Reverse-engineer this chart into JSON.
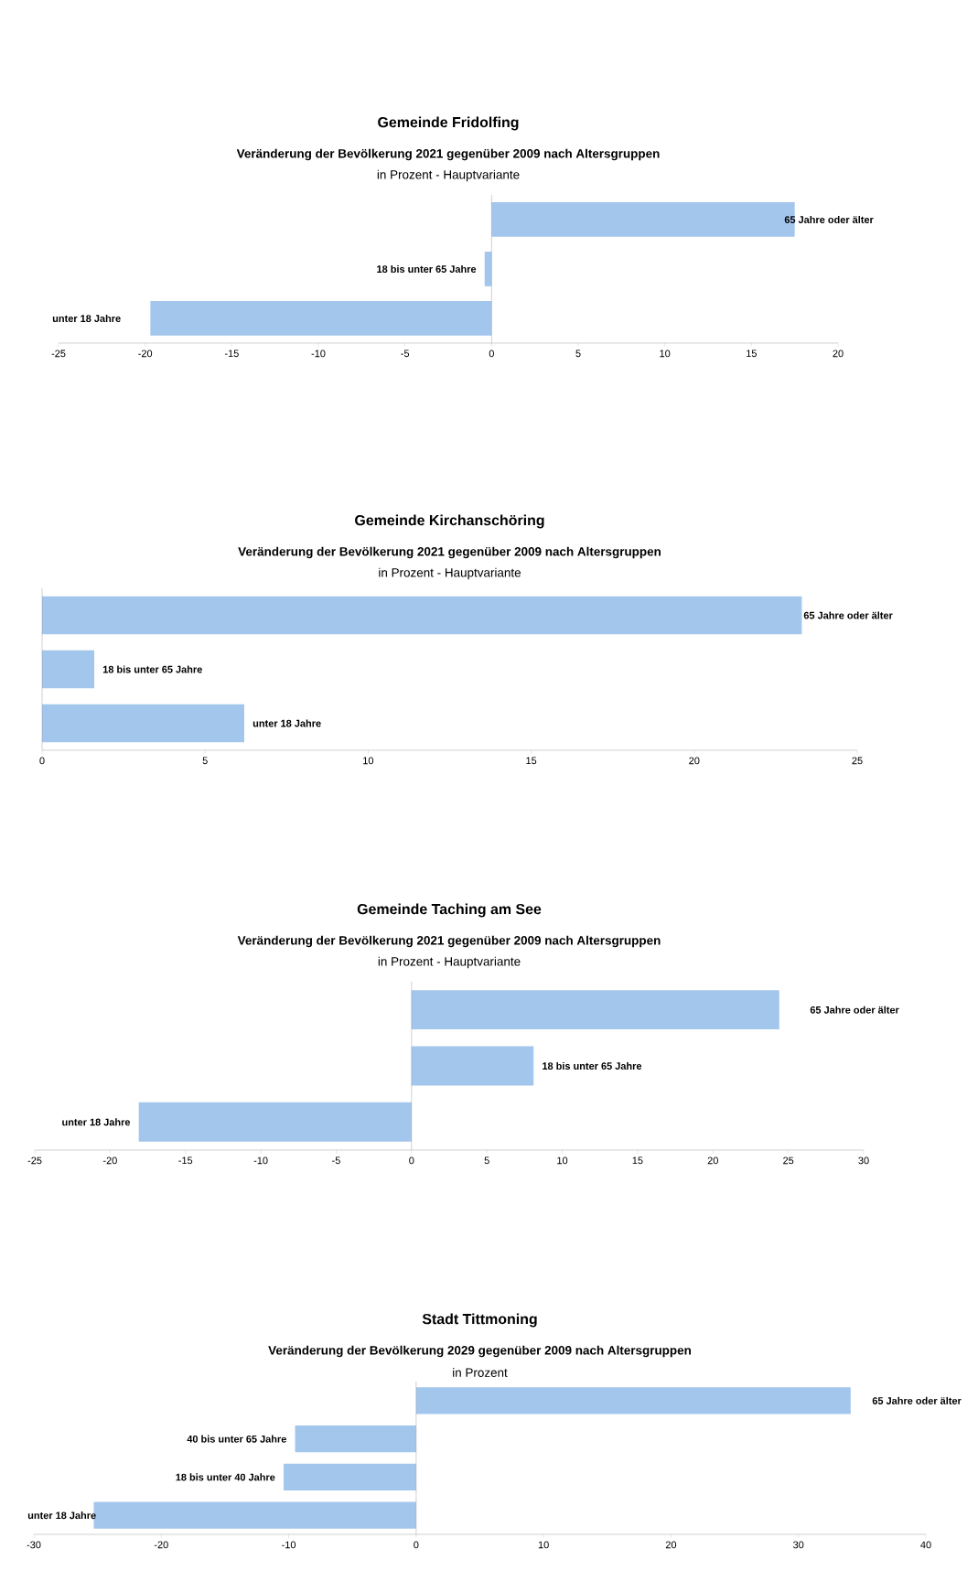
{
  "chart_data": [
    {
      "type": "bar",
      "orientation": "horizontal",
      "title": "Gemeinde Fridolfing",
      "subtitle": "Veränderung der Bevölkerung 2021 gegenüber 2009 nach Altersgruppen",
      "annotations": [
        "in Prozent - Hauptvariante"
      ],
      "categories": [
        "65 Jahre oder älter",
        "18 bis unter 65 Jahre",
        "unter 18 Jahre"
      ],
      "values": [
        17.5,
        -0.4,
        -19.7
      ],
      "color": "#a3c6ed",
      "xlim": [
        -25,
        20
      ],
      "xticks": [
        -25,
        -20,
        -15,
        -10,
        -5,
        0,
        5,
        10,
        15,
        20
      ]
    },
    {
      "type": "bar",
      "orientation": "horizontal",
      "title": "Gemeinde Kirchanschöring",
      "subtitle": "Veränderung der Bevölkerung 2021 gegenüber 2009 nach Altersgruppen",
      "annotations": [
        "in Prozent - Hauptvariante"
      ],
      "categories": [
        "65 Jahre oder älter",
        "18 bis unter 65 Jahre",
        "unter 18 Jahre"
      ],
      "values": [
        23.3,
        1.6,
        6.2
      ],
      "color": "#a3c6ed",
      "xlim": [
        0,
        25
      ],
      "xticks": [
        0,
        5,
        10,
        15,
        20,
        25
      ]
    },
    {
      "type": "bar",
      "orientation": "horizontal",
      "title": "Gemeinde Taching am See",
      "subtitle": "Veränderung der Bevölkerung 2021 gegenüber 2009 nach Altersgruppen",
      "annotations": [
        "in Prozent - Hauptvariante"
      ],
      "categories": [
        "65 Jahre oder älter",
        "18 bis unter 65 Jahre",
        "unter 18 Jahre"
      ],
      "values": [
        24.4,
        8.1,
        -18.1
      ],
      "color": "#a3c6ed",
      "xlim": [
        -25,
        30
      ],
      "xticks": [
        -25,
        -20,
        -15,
        -10,
        -5,
        0,
        5,
        10,
        15,
        20,
        25,
        30
      ]
    },
    {
      "type": "bar",
      "orientation": "horizontal",
      "title": "Stadt Tittmoning",
      "subtitle": "Veränderung der Bevölkerung 2029 gegenüber 2009 nach Altersgruppen",
      "annotations": [
        "in Prozent"
      ],
      "categories": [
        "65 Jahre oder älter",
        "40 bis unter 65 Jahre",
        "18 bis unter 40 Jahre",
        "unter 18 Jahre"
      ],
      "values": [
        34.1,
        -9.5,
        -10.4,
        -25.3
      ],
      "color": "#a3c6ed",
      "xlim": [
        -30,
        40
      ],
      "xticks": [
        -30,
        -20,
        -10,
        0,
        10,
        20,
        30,
        40
      ]
    }
  ]
}
